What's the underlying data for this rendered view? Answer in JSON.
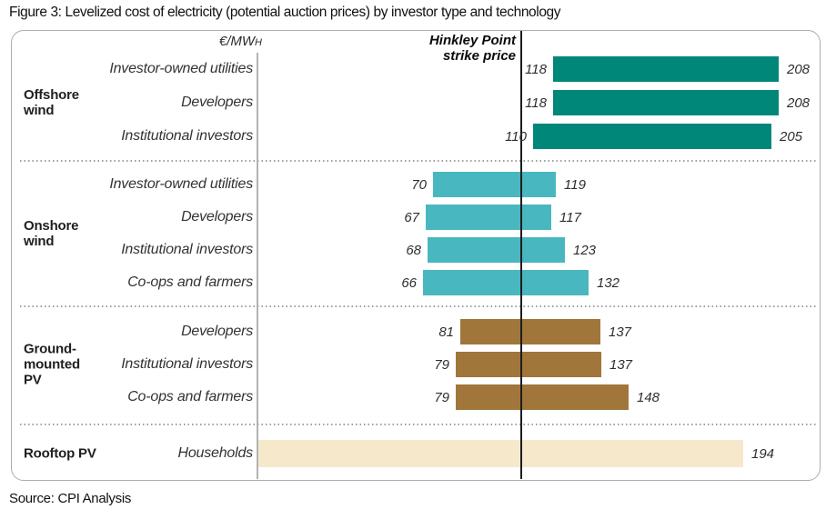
{
  "figure": {
    "title": "Figure 3: Levelized cost of electricity (potential auction prices) by investor type and technology",
    "source": "Source: CPI Analysis"
  },
  "chart_data": {
    "type": "bar",
    "subtype": "horizontal-range",
    "title": "Levelized cost of electricity (potential auction prices) by investor type and technology",
    "unit_label": "€/MWh",
    "value_axis_range": [
      0,
      225
    ],
    "grid": false,
    "reference_line": {
      "label_line1": "Hinkley Point",
      "label_line2": "strike price"
    },
    "groups": [
      {
        "name": "Offshore wind",
        "color": "#008779",
        "rows": [
          {
            "label": "Investor-owned utilities",
            "low": 118,
            "high": 208
          },
          {
            "label": "Developers",
            "low": 118,
            "high": 208
          },
          {
            "label": "Institutional investors",
            "low": 110,
            "high": 205
          }
        ]
      },
      {
        "name": "Onshore wind",
        "color": "#49b7bf",
        "rows": [
          {
            "label": "Investor-owned utilities",
            "low": 70,
            "high": 119
          },
          {
            "label": "Developers",
            "low": 67,
            "high": 117
          },
          {
            "label": "Institutional investors",
            "low": 68,
            "high": 123
          },
          {
            "label": "Co-ops and farmers",
            "low": 66,
            "high": 132
          }
        ]
      },
      {
        "name": "Ground-mounted PV",
        "color": "#a0763a",
        "rows": [
          {
            "label": "Developers",
            "low": 81,
            "high": 137
          },
          {
            "label": "Institutional investors",
            "low": 79,
            "high": 137
          },
          {
            "label": "Co-ops and farmers",
            "low": 79,
            "high": 148
          }
        ]
      },
      {
        "name": "Rooftop PV",
        "color": "#f6e9cb",
        "rows": [
          {
            "label": "Households",
            "low": 0,
            "high": 194,
            "show_low": false
          }
        ]
      }
    ]
  }
}
